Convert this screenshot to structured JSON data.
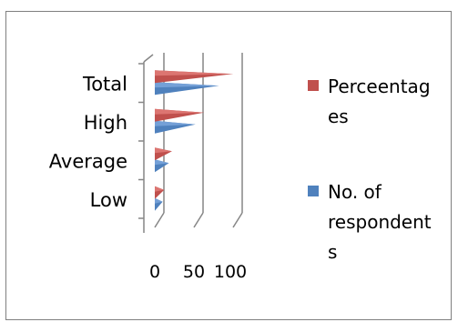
{
  "chart_data": {
    "type": "bar",
    "orientation": "horizontal",
    "style": "3d-cone",
    "categories": [
      "Low",
      "Average",
      "High",
      "Total"
    ],
    "series": [
      {
        "name": "No. of respondents",
        "values": [
          10,
          18,
          52,
          82
        ],
        "color": "#4f81bd"
      },
      {
        "name": "Perceentages",
        "values": [
          12,
          22,
          63,
          100
        ],
        "color": "#c0504d"
      }
    ],
    "xlim": [
      0,
      100
    ],
    "xticks": [
      0,
      50,
      100
    ],
    "xtick_labels": [
      "0",
      "50",
      "100"
    ],
    "grid": true,
    "legend": {
      "position": "right",
      "entries": [
        {
          "lines": [
            "Perceentag",
            "es"
          ],
          "color": "#c0504d"
        },
        {
          "lines": [
            "No. of",
            "respondent",
            "s"
          ],
          "color": "#4f81bd"
        }
      ]
    }
  }
}
